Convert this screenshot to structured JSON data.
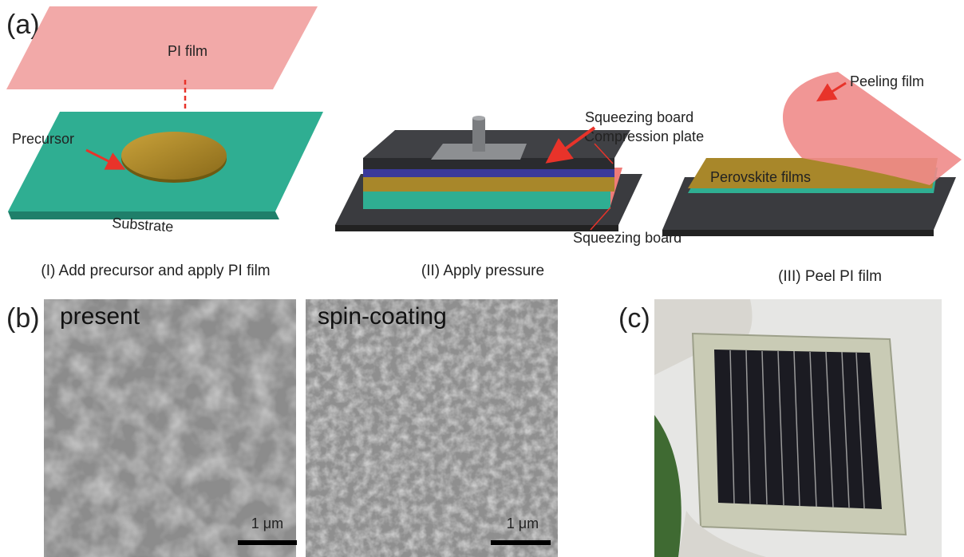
{
  "panel_a": {
    "label": "(a)",
    "step_1": {
      "pi_film": "PI film",
      "precursor": "Precursor",
      "substrate": "Substrate",
      "caption": "(I) Add precursor and apply PI film"
    },
    "step_2": {
      "top_board": "Squeezing board",
      "plate": "Compression plate",
      "bottom_board": "Squeezing board",
      "caption": "(II) Apply pressure"
    },
    "step_3": {
      "peeling": "Peeling film",
      "perovskite": "Perovskite films",
      "caption": "(III) Peel PI film"
    }
  },
  "panel_b": {
    "label": "(b)",
    "images": [
      {
        "title": "present",
        "scale": "1 μm"
      },
      {
        "title": "spin-coating",
        "scale": "1 μm"
      }
    ]
  },
  "panel_c": {
    "label": "(c)"
  }
}
